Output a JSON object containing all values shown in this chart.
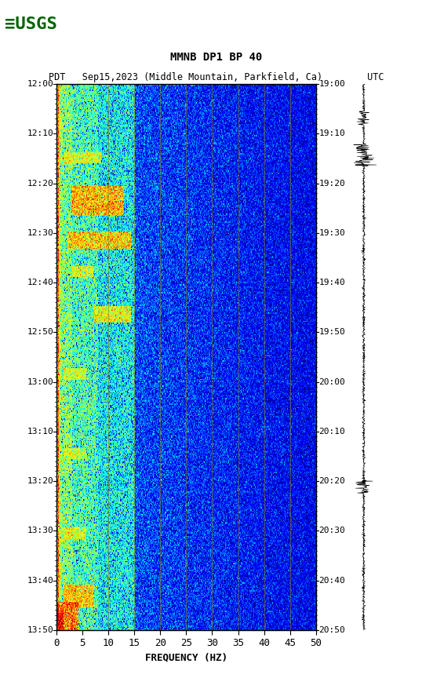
{
  "title_line1": "MMNB DP1 BP 40",
  "title_line2": "PDT   Sep15,2023 (Middle Mountain, Parkfield, Ca)        UTC",
  "xlabel": "FREQUENCY (HZ)",
  "freq_min": 0,
  "freq_max": 50,
  "time_min": 0,
  "time_max": 120,
  "left_time_labels": [
    "12:00",
    "12:10",
    "12:20",
    "12:30",
    "12:40",
    "12:50",
    "13:00",
    "13:10",
    "13:20",
    "13:30",
    "13:40",
    "13:50"
  ],
  "right_time_labels": [
    "19:00",
    "19:10",
    "19:20",
    "19:30",
    "19:40",
    "19:50",
    "20:00",
    "20:10",
    "20:20",
    "20:30",
    "20:40",
    "20:50"
  ],
  "freq_ticks": [
    0,
    5,
    10,
    15,
    20,
    25,
    30,
    35,
    40,
    45,
    50
  ],
  "vert_grid_freqs": [
    10,
    15,
    20,
    25,
    30,
    35,
    40,
    45
  ],
  "grid_color": "#8B8000",
  "background_color": "#ffffff",
  "usgs_logo_color": "#006400"
}
